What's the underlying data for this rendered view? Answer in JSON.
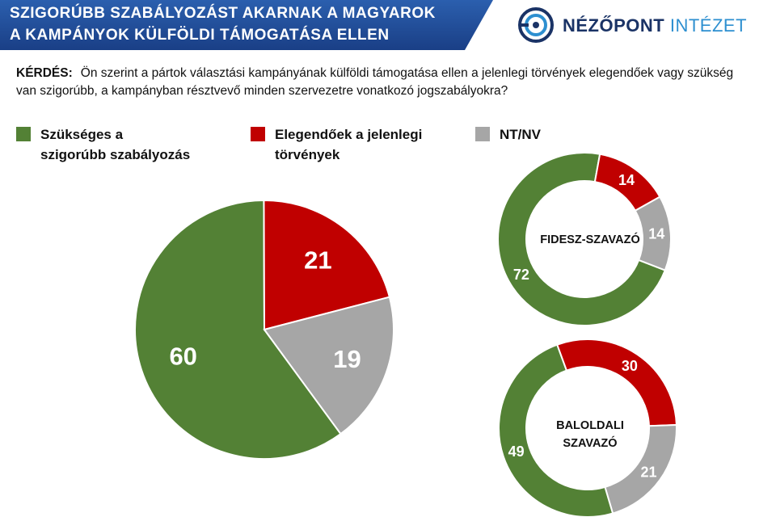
{
  "header": {
    "title_line1": "SZIGORÚBB SZABÁLYOZÁST AKARNAK A MAGYAROK",
    "title_line2": "A KAMPÁNYOK KÜLFÖLDI TÁMOGATÁSA ELLEN"
  },
  "logo": {
    "word1": "NÉZŐPONT",
    "word2": "INTÉZET",
    "icon": "nezopont-logo-icon"
  },
  "question": {
    "label": "KÉRDÉS:",
    "text": "Ön szerint a pártok választási kampányának külföldi támogatása ellen a jelenlegi törvények elegendőek vagy szükség van szigorúbb, a kampányban résztvevő minden szervezetre vonatkozó jogszabályokra?"
  },
  "legend": [
    {
      "line1": "Szükséges a",
      "line2": "szigorúbb szabályozás",
      "color": "#538135"
    },
    {
      "line1": "Elegendőek a jelenlegi",
      "line2": "törvények",
      "color": "#c00000"
    },
    {
      "line1": "NT/NV",
      "line2": "",
      "color": "#a6a6a6"
    }
  ],
  "chart_data": [
    {
      "type": "pie",
      "categories": [
        "Szükséges a szigorúbb szabályozás",
        "Elegendőek a jelenlegi törvények",
        "NT/NV"
      ],
      "values": [
        60,
        21,
        19
      ],
      "colors": [
        "#538135",
        "#c00000",
        "#a6a6a6"
      ]
    },
    {
      "type": "donut",
      "title": "FIDESZ-SZAVAZÓ",
      "categories": [
        "Szükséges a szigorúbb szabályozás",
        "Elegendőek a jelenlegi törvények",
        "NT/NV"
      ],
      "values": [
        72,
        14,
        14
      ],
      "colors": [
        "#538135",
        "#c00000",
        "#a6a6a6"
      ]
    },
    {
      "type": "donut",
      "title": "BALOLDALI SZAVAZÓ",
      "title_lines": [
        "BALOLDALI",
        "SZAVAZÓ"
      ],
      "categories": [
        "Szükséges a szigorúbb szabályozás",
        "Elegendőek a jelenlegi törvények",
        "NT/NV"
      ],
      "values": [
        49,
        30,
        21
      ],
      "colors": [
        "#538135",
        "#c00000",
        "#a6a6a6"
      ]
    }
  ]
}
